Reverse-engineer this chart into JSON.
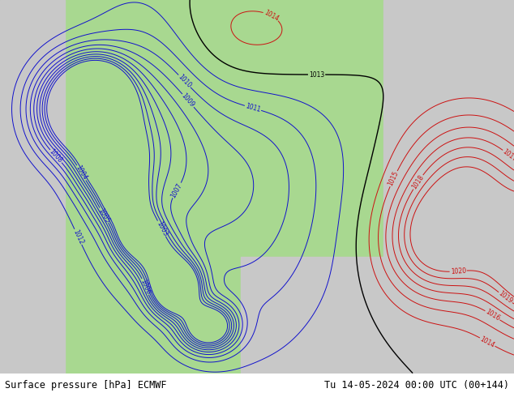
{
  "title_left": "Surface pressure [hPa] ECMWF",
  "title_right": "Tu 14-05-2024 00:00 UTC (00+144)",
  "land_color": "#a8d890",
  "ocean_color": "#c8c8c8",
  "isobar_blue": "#1111cc",
  "isobar_black": "#000000",
  "isobar_red": "#cc1111",
  "label_fontsize": 5.5,
  "footer_fontsize": 8.5,
  "fig_width": 6.34,
  "fig_height": 4.9,
  "dpi": 100,
  "extent_lon": [
    -137,
    -58
  ],
  "extent_lat": [
    13,
    61
  ],
  "pressure_levels_blue": [
    1003,
    1004,
    1005,
    1006,
    1007,
    1008,
    1009,
    1010,
    1011,
    1012
  ],
  "pressure_levels_black": [
    1013
  ],
  "pressure_levels_red": [
    1014,
    1015,
    1016,
    1017,
    1018,
    1019,
    1020
  ]
}
